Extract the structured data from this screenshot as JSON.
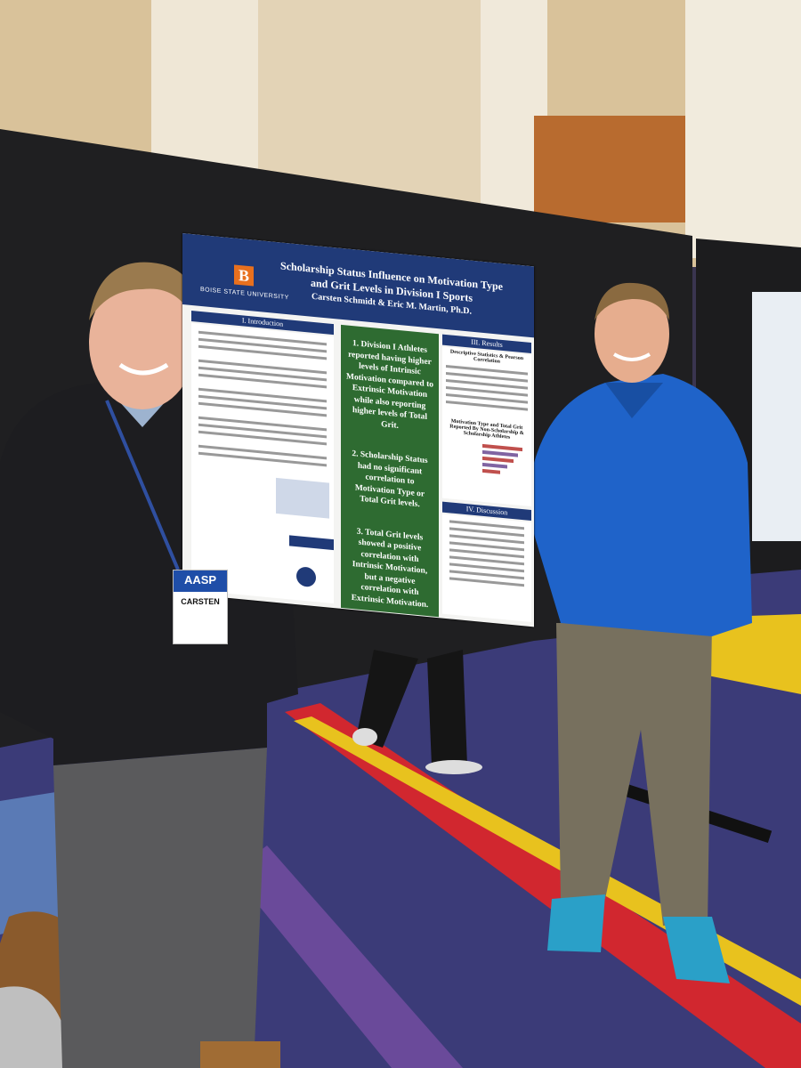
{
  "poster": {
    "university": "BOISE STATE UNIVERSITY",
    "title": "Scholarship Status Influence on Motivation Type and Grit Levels in Division I Sports",
    "authors": "Carsten Schmidt & Eric M. Martin, Ph.D.",
    "introduction": {
      "heading": "I. Introduction"
    },
    "findings": [
      "1. Division I Athletes reported having higher levels of Intrinsic Motivation compared to Extrinsic Motivation while also reporting higher levels of Total Grit.",
      "2. Scholarship Status had no significant correlation to Motivation Type or Total Grit levels.",
      "3. Total Grit levels showed a positive correlation with Intrinsic Motivation, but a negative correlation with Extrinsic Motivation."
    ],
    "results": {
      "heading": "III. Results",
      "table_title": "Descriptive Statistics & Pearson Correlation",
      "chart_title": "Motivation Type and Total Grit Reported By Non-Scholarship & Scholarship Athletes"
    },
    "discussion": {
      "heading": "IV. Discussion"
    }
  },
  "badge": {
    "event": "AASP",
    "name": "CARSTEN"
  }
}
